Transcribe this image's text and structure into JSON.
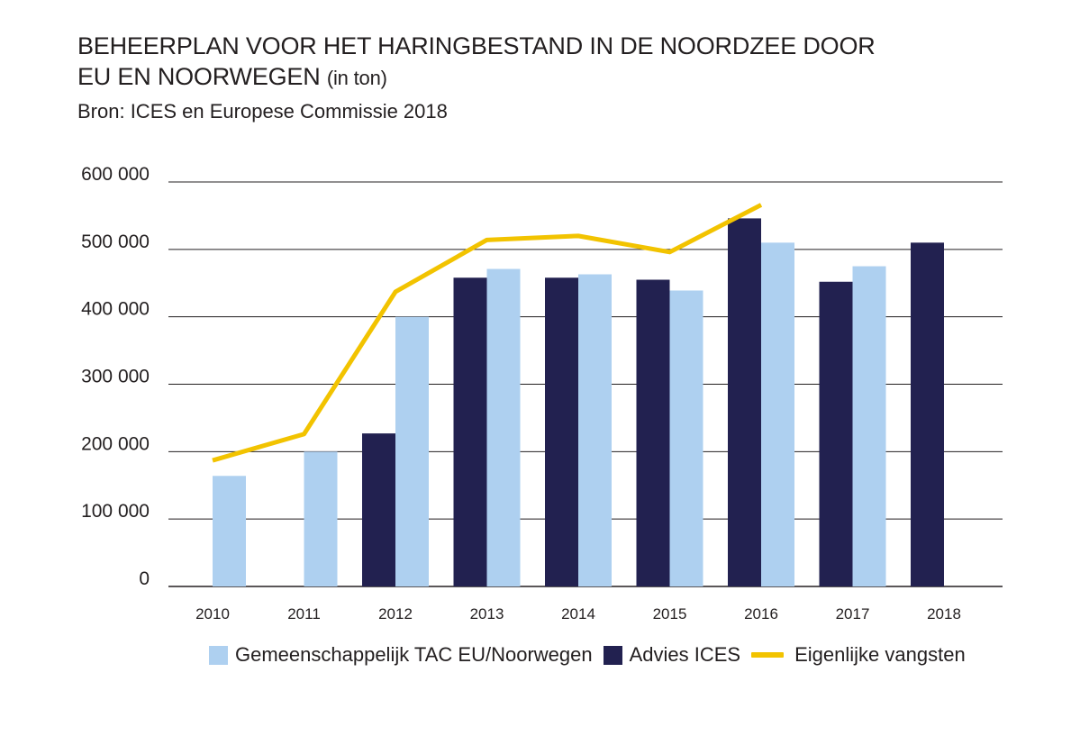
{
  "title": {
    "line1": "BEHEERPLAN VOOR HET HARINGBESTAND IN DE NOORDZEE DOOR",
    "line2": "EU EN NOORWEGEN",
    "unit": "(in ton)"
  },
  "source": "Bron: ICES en Europese Commissie 2018",
  "colors": {
    "tac": "#aed0f0",
    "ices": "#222150",
    "catches": "#f2c300",
    "grid": "#231f20"
  },
  "chart_data": {
    "type": "bar",
    "categories": [
      "2010",
      "2011",
      "2012",
      "2013",
      "2014",
      "2015",
      "2016",
      "2017",
      "2018"
    ],
    "ylim": [
      0,
      600000
    ],
    "yticks": [
      0,
      100000,
      200000,
      300000,
      400000,
      500000,
      600000
    ],
    "ytick_labels": [
      "0",
      "100 000",
      "200 000",
      "300 000",
      "400 000",
      "500 000",
      "600 000"
    ],
    "grid": true,
    "legend_position": "bottom",
    "series": [
      {
        "name": "Advies ICES",
        "type": "bar",
        "values": [
          null,
          null,
          227000,
          458000,
          458000,
          455000,
          546000,
          452000,
          510000
        ]
      },
      {
        "name": "Gemeenschappelijk TAC EU/Noorwegen",
        "type": "bar",
        "values": [
          164000,
          200000,
          400000,
          471000,
          463000,
          439000,
          510000,
          475000,
          null
        ]
      },
      {
        "name": "Eigenlijke vangsten",
        "type": "line",
        "values": [
          187000,
          226000,
          437000,
          514000,
          520000,
          496000,
          566000,
          null,
          null
        ]
      }
    ]
  }
}
